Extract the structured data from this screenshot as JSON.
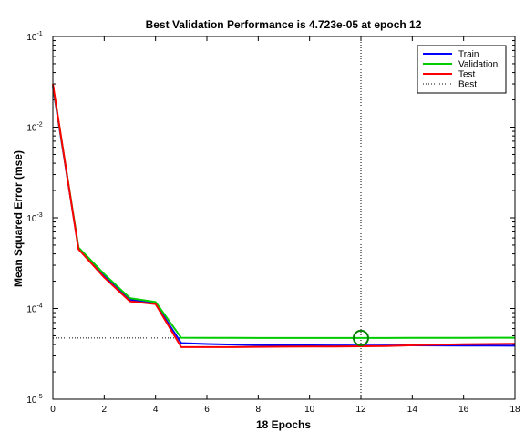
{
  "chart_data": {
    "type": "line",
    "title": "Best Validation Performance is 4.723e-05 at epoch 12",
    "xlabel": "18 Epochs",
    "ylabel": "Mean Squared Error  (mse)",
    "scale_y": "log",
    "xlim": [
      0,
      18
    ],
    "ylim": [
      1e-05,
      0.1
    ],
    "x_ticks": [
      0,
      2,
      4,
      6,
      8,
      10,
      12,
      14,
      16,
      18
    ],
    "y_ticks": [
      {
        "value": 0.1,
        "base": "10",
        "exp": "-1"
      },
      {
        "value": 0.01,
        "base": "10",
        "exp": "-2"
      },
      {
        "value": 0.001,
        "base": "10",
        "exp": "-3"
      },
      {
        "value": 0.0001,
        "base": "10",
        "exp": "-4"
      },
      {
        "value": 1e-05,
        "base": "10",
        "exp": "-5"
      }
    ],
    "x": [
      0,
      1,
      2,
      3,
      4,
      5,
      6,
      7,
      8,
      9,
      10,
      11,
      12,
      13,
      14,
      15,
      16,
      17,
      18
    ],
    "series": [
      {
        "name": "Train",
        "color": "#0000ff",
        "values": [
          0.028,
          0.00046,
          0.00023,
          0.000125,
          0.000113,
          4.15e-05,
          4.05e-05,
          4e-05,
          3.95e-05,
          3.93e-05,
          3.92e-05,
          3.91e-05,
          3.9e-05,
          3.91e-05,
          3.92e-05,
          3.91e-05,
          3.9e-05,
          3.89e-05,
          3.88e-05
        ]
      },
      {
        "name": "Validation",
        "color": "#00cc00",
        "values": [
          0.029,
          0.00047,
          0.00024,
          0.00013,
          0.000118,
          4.75e-05,
          4.74e-05,
          4.74e-05,
          4.73e-05,
          4.73e-05,
          4.73e-05,
          4.73e-05,
          4.723e-05,
          4.73e-05,
          4.74e-05,
          4.74e-05,
          4.74e-05,
          4.75e-05,
          4.75e-05
        ]
      },
      {
        "name": "Test",
        "color": "#ff0000",
        "values": [
          0.03,
          0.00045,
          0.00022,
          0.00012,
          0.000112,
          3.75e-05,
          3.75e-05,
          3.75e-05,
          3.77e-05,
          3.79e-05,
          3.8e-05,
          3.81e-05,
          3.83e-05,
          3.85e-05,
          3.93e-05,
          3.98e-05,
          4.03e-05,
          4.06e-05,
          4.08e-05
        ]
      }
    ],
    "best": {
      "label": "Best",
      "epoch": 12,
      "value": 4.723e-05,
      "color": "#000000",
      "marker_color": "#008000"
    },
    "legend": {
      "placement": "top-right",
      "entries": [
        "Train",
        "Validation",
        "Test",
        "Best"
      ]
    },
    "grid": false
  }
}
